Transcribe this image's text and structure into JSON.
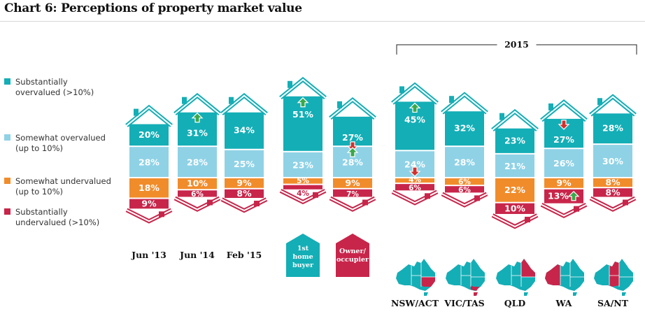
{
  "title": "Chart 6: Perceptions of property market value",
  "colors": {
    "substantially_overvalued": "#14aeb6",
    "somewhat_overvalued": "#8fd2e6",
    "somewhat_undervalued": "#f18c2b",
    "substantially_undervalued": "#c8254a",
    "first_home_buyer": "#14aeb6",
    "owner_occupier": "#c8254a"
  },
  "legend": [
    {
      "key": "substantially_overvalued",
      "label": "Substantially\novervalued (>10%)"
    },
    {
      "key": "somewhat_overvalued",
      "label": "Somewhat overvalued\n(up to 10%)"
    },
    {
      "key": "somewhat_undervalued",
      "label": "Somewhat undervalued\n(up to 10%)"
    },
    {
      "key": "substantially_undervalued",
      "label": "Substantially\nundervalued (>10%)"
    }
  ],
  "year_bracket_label": "2015",
  "buyer_labels": {
    "first_home": "1st\nhome\nbuyer",
    "owner": "Owner/\noccupier"
  },
  "chart_data": {
    "type": "bar",
    "stacked": "diverging",
    "series_order": [
      "substantially_overvalued",
      "somewhat_overvalued",
      "somewhat_undervalued",
      "substantially_undervalued"
    ],
    "categories": [
      {
        "label": "Jun '13",
        "group": "time",
        "values": [
          20,
          28,
          18,
          9
        ],
        "value_labels": [
          "20%",
          "28%",
          "18%",
          "9%"
        ]
      },
      {
        "label": "Jun '14",
        "group": "time",
        "values": [
          31,
          28,
          10,
          6
        ],
        "value_labels": [
          "31%",
          "28%",
          "10%",
          "6%"
        ],
        "arrows": [
          {
            "series": "substantially_overvalued",
            "dir": "up"
          }
        ]
      },
      {
        "label": "Feb '15",
        "group": "time",
        "values": [
          34,
          25,
          9,
          8
        ],
        "value_labels": [
          "34%",
          "25%",
          "9%",
          "8%"
        ]
      },
      {
        "label": "",
        "group": "buyer",
        "buyer": "first_home",
        "values": [
          51,
          23,
          5,
          4
        ],
        "value_labels": [
          "51%",
          "23%",
          "5%",
          "4%"
        ],
        "arrows": [
          {
            "series": "substantially_overvalued",
            "dir": "up"
          }
        ]
      },
      {
        "label": "",
        "group": "buyer",
        "buyer": "owner",
        "values": [
          27,
          28,
          9,
          7
        ],
        "value_labels": [
          "27%",
          "28%",
          "9%",
          "7%"
        ],
        "arrows": [
          {
            "series": "substantially_overvalued",
            "dir": "down"
          },
          {
            "series": "somewhat_overvalued",
            "dir": "up"
          }
        ]
      },
      {
        "label": "NSW/ACT",
        "group": "state",
        "values": [
          45,
          24,
          4,
          6
        ],
        "value_labels": [
          "45%",
          "24%",
          "4%",
          "6%"
        ],
        "arrows": [
          {
            "series": "substantially_overvalued",
            "dir": "up"
          },
          {
            "series": "somewhat_overvalued",
            "dir": "down"
          }
        ]
      },
      {
        "label": "VIC/TAS",
        "group": "state",
        "values": [
          32,
          28,
          6,
          6
        ],
        "value_labels": [
          "32%",
          "28%",
          "6%",
          "6%"
        ]
      },
      {
        "label": "QLD",
        "group": "state",
        "values": [
          23,
          21,
          22,
          10
        ],
        "value_labels": [
          "23%",
          "21%",
          "22%",
          "10%"
        ]
      },
      {
        "label": "WA",
        "group": "state",
        "values": [
          27,
          26,
          9,
          13
        ],
        "value_labels": [
          "27%",
          "26%",
          "9%",
          "13%"
        ],
        "arrows": [
          {
            "series": "substantially_overvalued",
            "dir": "down"
          },
          {
            "series": "substantially_undervalued",
            "dir": "up"
          }
        ]
      },
      {
        "label": "SA/NT",
        "group": "state",
        "values": [
          28,
          30,
          8,
          8
        ],
        "value_labels": [
          "28%",
          "30%",
          "8%",
          "8%"
        ]
      }
    ]
  }
}
